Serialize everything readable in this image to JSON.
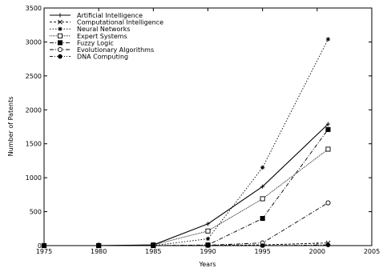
{
  "chart_data": {
    "type": "line",
    "title": "",
    "xlabel": "Years",
    "ylabel": "Number of Patents",
    "xlim": [
      1975,
      2005
    ],
    "ylim": [
      0,
      3500
    ],
    "xticks": [
      1975,
      1980,
      1985,
      1990,
      1995,
      2000,
      2005
    ],
    "yticks": [
      0,
      500,
      1000,
      1500,
      2000,
      2500,
      3000,
      3500
    ],
    "grid": false,
    "legend_position": "top-left",
    "x": [
      1975,
      1980,
      1985,
      1990,
      1995,
      2001
    ],
    "series": [
      {
        "name": "Artificial Intelligence",
        "values": [
          0,
          0,
          10,
          320,
          870,
          1790
        ],
        "marker": "plus",
        "dash": "solid"
      },
      {
        "name": "Computational Intelligence",
        "values": [
          0,
          0,
          0,
          5,
          10,
          40
        ],
        "marker": "cross",
        "dash": "dashed"
      },
      {
        "name": "Neural Networks",
        "values": [
          0,
          0,
          0,
          100,
          1150,
          3040
        ],
        "marker": "star",
        "dash": "dotted"
      },
      {
        "name": "Expert Systems",
        "values": [
          0,
          0,
          10,
          215,
          690,
          1420
        ],
        "marker": "open-square",
        "dash": "fine-dotted"
      },
      {
        "name": "Fuzzy Logic",
        "values": [
          0,
          0,
          0,
          10,
          400,
          1710
        ],
        "marker": "filled-square",
        "dash": "dash-dot"
      },
      {
        "name": "Evolutionary Algorithms",
        "values": [
          0,
          0,
          0,
          5,
          40,
          630
        ],
        "marker": "open-circle",
        "dash": "dash-dot"
      },
      {
        "name": "DNA Computing",
        "values": [
          0,
          0,
          0,
          0,
          0,
          10
        ],
        "marker": "filled-circle",
        "dash": "dash-dot-dot"
      }
    ]
  }
}
